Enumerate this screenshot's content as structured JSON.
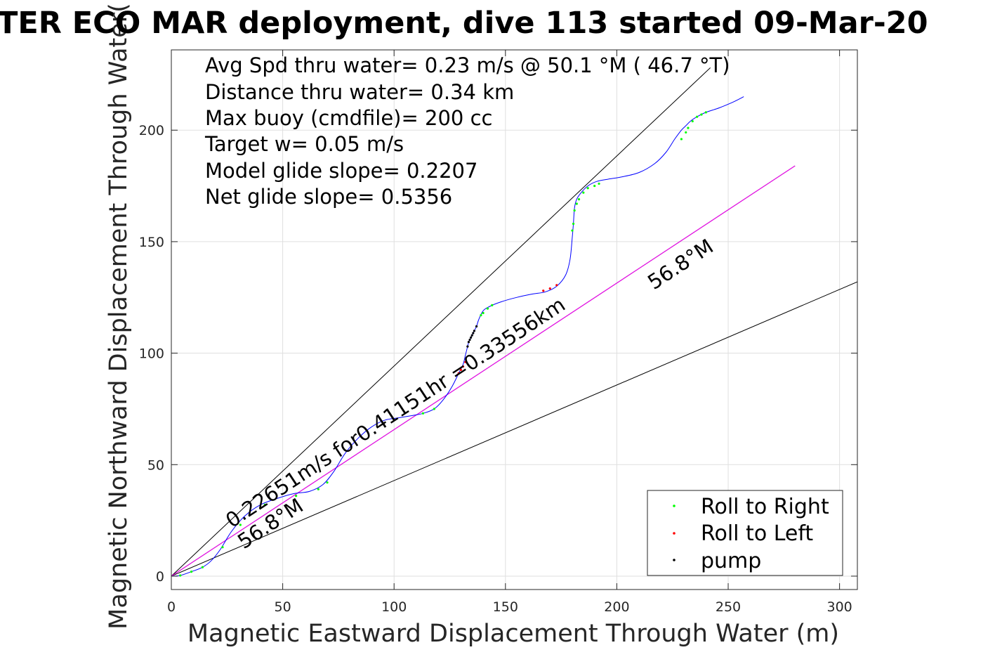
{
  "chart_data": {
    "type": "line",
    "title": "TER ECO MAR deployment, dive 113 started 09-Mar-20",
    "xlabel": "Magnetic Eastward Displacement Through Water (m)",
    "ylabel": "Magnetic Northward Displacement Through Water(",
    "xlim": [
      0,
      308
    ],
    "ylim": [
      -6,
      236
    ],
    "xticks": [
      0,
      50,
      100,
      150,
      200,
      250,
      300
    ],
    "yticks": [
      0,
      50,
      100,
      150,
      200
    ],
    "grid": true,
    "legend_position": "bottom-right",
    "stats_text": [
      "Avg Spd thru water=  0.23 m/s @  50.1 °M ( 46.7 °T)",
      "Distance thru water=  0.34 km",
      "Max buoy (cmdfile)= 200 cc",
      "Target w= 0.05 m/s",
      "Model glide slope= 0.2207",
      "Net glide slope= 0.5356"
    ],
    "annotations": {
      "speed_label": "0.22651m/s for0.41151hr =0.33556km",
      "heading_label_1": "56.8°M",
      "heading_label_2": "56.8°M"
    },
    "reference_lines": [
      {
        "name": "upper-heading-line",
        "color": "#000000",
        "x": [
          0,
          242
        ],
        "y": [
          0,
          228
        ]
      },
      {
        "name": "lower-heading-line",
        "color": "#000000",
        "x": [
          0,
          308
        ],
        "y": [
          0,
          132
        ]
      },
      {
        "name": "mean-track-line",
        "color": "#000000",
        "x": [
          0,
          280
        ],
        "y": [
          0,
          184
        ]
      },
      {
        "name": "mean-track-overlay",
        "color": "#ff00ff",
        "x": [
          0,
          280
        ],
        "y": [
          0,
          184
        ]
      }
    ],
    "track": {
      "color": "#0000ff",
      "x": [
        0,
        4,
        9,
        14,
        18,
        22,
        27,
        33,
        40,
        48,
        55,
        62,
        68,
        73,
        78,
        84,
        90,
        96,
        102,
        108,
        113,
        118,
        122,
        126,
        129,
        131,
        132,
        133,
        133.5,
        134,
        134.5,
        135,
        135.5,
        136,
        137,
        138,
        140,
        143,
        148,
        155,
        162,
        168,
        173,
        177,
        179,
        180,
        180.5,
        181,
        182,
        184,
        187,
        191,
        196,
        202,
        210,
        217,
        222,
        226,
        229,
        231,
        233,
        236,
        240,
        246,
        252,
        257
      ],
      "y": [
        0,
        0.3,
        2,
        4,
        7,
        12,
        20,
        27,
        32,
        35,
        37,
        38,
        41,
        47,
        55,
        62,
        67,
        70,
        71,
        72,
        73,
        75,
        79,
        85,
        91,
        95,
        99,
        103,
        105,
        106,
        107,
        108,
        109,
        110,
        112,
        115,
        119,
        121,
        123,
        125,
        126.5,
        127.5,
        130,
        135,
        142,
        152,
        158,
        165,
        169,
        172,
        175,
        177,
        178,
        179,
        181,
        185,
        190,
        196,
        200,
        202,
        204,
        206,
        208,
        210,
        212.5,
        215
      ]
    },
    "series": [
      {
        "name": "Roll to Right",
        "color": "#00ff00",
        "x": [
          4,
          9,
          14,
          23,
          31,
          42,
          56,
          66,
          70,
          113,
          118,
          139,
          140,
          142,
          144,
          180,
          180.5,
          181,
          182,
          183,
          185,
          187,
          190,
          192,
          229,
          231,
          232,
          234,
          236,
          238,
          240
        ],
        "y": [
          0.3,
          2,
          4,
          13,
          23,
          32,
          36,
          39,
          42,
          73,
          75,
          117,
          118,
          120,
          121.5,
          155,
          158,
          164,
          167,
          169,
          172,
          174,
          175,
          176,
          196,
          199,
          201,
          204,
          206,
          207,
          208
        ]
      },
      {
        "name": "Roll to Left",
        "color": "#ff0000",
        "x": [
          129,
          130,
          131,
          132,
          167,
          170,
          173
        ],
        "y": [
          91,
          92.5,
          94,
          96,
          128,
          129,
          130.5
        ]
      },
      {
        "name": "pump",
        "color": "#000000",
        "x": [
          133,
          133.5,
          134,
          134.5,
          135,
          135.5,
          136,
          137
        ],
        "y": [
          103,
          105,
          106,
          107,
          108,
          109,
          110,
          112
        ]
      }
    ]
  }
}
